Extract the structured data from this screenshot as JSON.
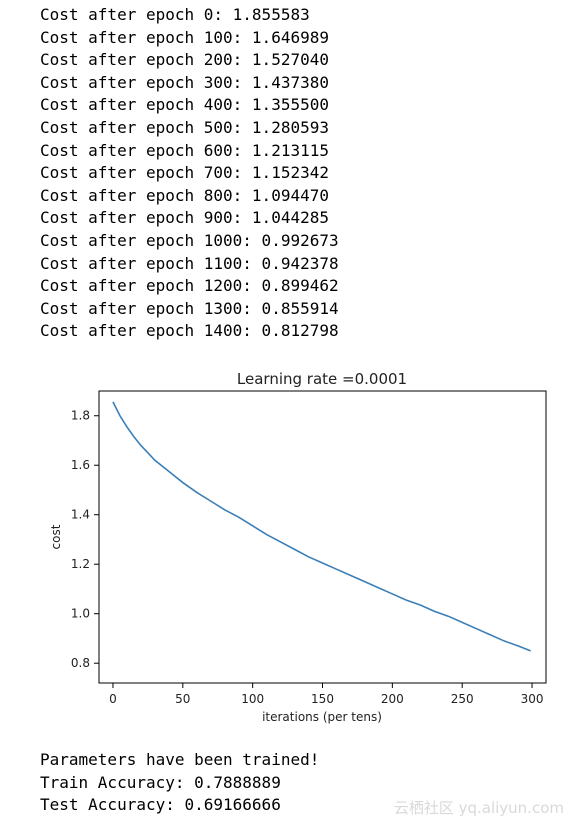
{
  "log_lines": [
    "Cost after epoch 0: 1.855583",
    "Cost after epoch 100: 1.646989",
    "Cost after epoch 200: 1.527040",
    "Cost after epoch 300: 1.437380",
    "Cost after epoch 400: 1.355500",
    "Cost after epoch 500: 1.280593",
    "Cost after epoch 600: 1.213115",
    "Cost after epoch 700: 1.152342",
    "Cost after epoch 800: 1.094470",
    "Cost after epoch 900: 1.044285",
    "Cost after epoch 1000: 0.992673",
    "Cost after epoch 1100: 0.942378",
    "Cost after epoch 1200: 0.899462",
    "Cost after epoch 1300: 0.855914",
    "Cost after epoch 1400: 0.812798"
  ],
  "result_lines": [
    "Parameters have been trained!",
    "Train Accuracy: 0.7888889",
    "Test Accuracy: 0.69166666"
  ],
  "watermark": "云栖社区 yq.aliyun.com",
  "chart_data": {
    "type": "line",
    "title": "Learning rate =0.0001",
    "xlabel": "iterations (per tens)",
    "ylabel": "cost",
    "xlim": [
      -10,
      310
    ],
    "ylim": [
      0.72,
      1.9
    ],
    "x_ticks": [
      0,
      50,
      100,
      150,
      200,
      250,
      300
    ],
    "y_ticks": [
      0.8,
      1.0,
      1.2,
      1.4,
      1.6,
      1.8
    ],
    "y_tick_labels": [
      "0.8",
      "1.0",
      "1.2",
      "1.4",
      "1.6",
      "1.8"
    ],
    "grid": false,
    "line_color": "#3b7fb8",
    "series": [
      {
        "x": [
          0,
          5,
          10,
          15,
          20,
          25,
          30,
          40,
          50,
          60,
          70,
          80,
          90,
          100,
          110,
          120,
          130,
          140,
          150,
          160,
          170,
          180,
          190,
          200,
          210,
          220,
          230,
          240,
          250,
          260,
          270,
          280,
          290,
          299
        ],
        "values": [
          1.856,
          1.8,
          1.755,
          1.715,
          1.68,
          1.65,
          1.62,
          1.575,
          1.53,
          1.49,
          1.455,
          1.42,
          1.39,
          1.355,
          1.32,
          1.29,
          1.26,
          1.23,
          1.205,
          1.18,
          1.155,
          1.13,
          1.105,
          1.08,
          1.055,
          1.035,
          1.01,
          0.99,
          0.965,
          0.94,
          0.915,
          0.89,
          0.87,
          0.85
        ]
      }
    ]
  }
}
